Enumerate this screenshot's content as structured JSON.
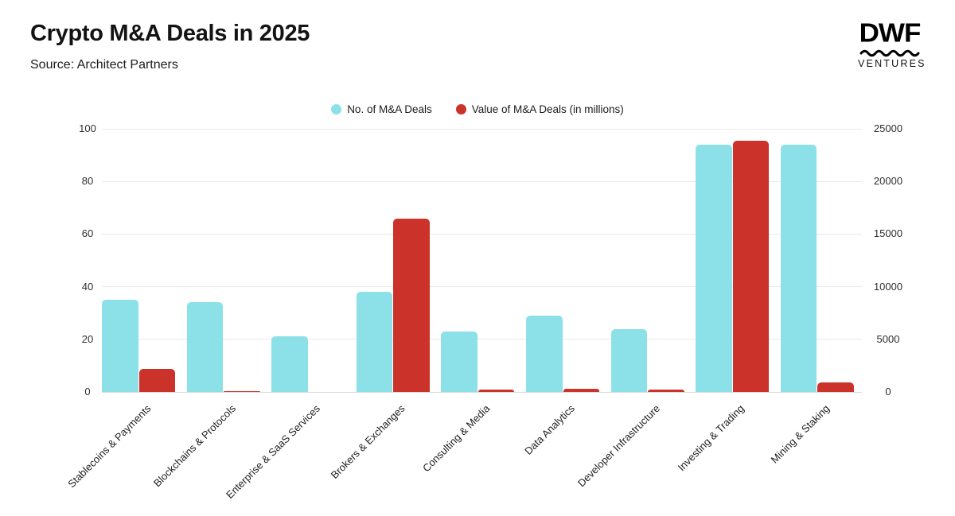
{
  "header": {
    "title": "Crypto M&A Deals in 2025",
    "source": "Source: Architect Partners"
  },
  "logo": {
    "brand": "DWF",
    "sub": "VENTURES"
  },
  "chart_data": {
    "type": "bar",
    "title": "Crypto M&A Deals in 2025",
    "subtitle": "Source: Architect Partners",
    "categories": [
      "Stablecoins & Payments",
      "Blockchains & Protocols",
      "Enterprise & SaaS Services",
      "Brokers & Exchanges",
      "Consulting & Media",
      "Data Analytics",
      "Developer Infrastructure",
      "Investing & Trading",
      "Mining & Staking"
    ],
    "series": [
      {
        "name": "No. of M&A Deals",
        "axis": "left",
        "color": "#8ce0e8",
        "values": [
          35,
          34,
          21,
          38,
          23,
          29,
          24,
          94,
          94
        ]
      },
      {
        "name": "Value of M&A Deals (in millions)",
        "axis": "right",
        "color": "#cb3229",
        "values": [
          2200,
          100,
          0,
          16500,
          250,
          300,
          200,
          23900,
          900
        ]
      }
    ],
    "axes": {
      "left": {
        "ticks": [
          0,
          20,
          40,
          60,
          80,
          100
        ],
        "range": [
          0,
          100
        ]
      },
      "right": {
        "ticks": [
          0,
          5000,
          10000,
          15000,
          20000,
          25000
        ],
        "range": [
          0,
          25000
        ]
      }
    },
    "grid": true,
    "legend_position": "top-center",
    "xlabel_rotation_deg": -45
  },
  "colors": {
    "grid": "#e8e8e8",
    "baseline": "#dcdcdc",
    "axis_text": "#2e2e2e"
  }
}
